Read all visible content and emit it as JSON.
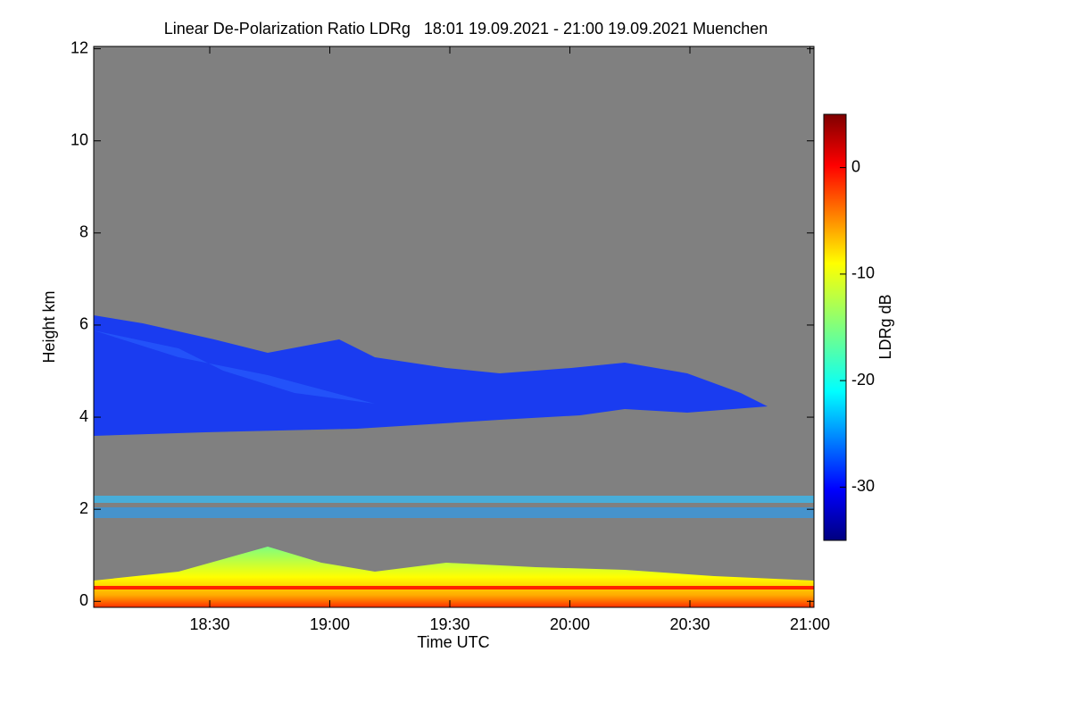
{
  "chart_data": {
    "type": "heatmap",
    "title": "Linear De-Polarization Ratio LDRg   18:01 19.09.2021 - 21:00 19.09.2021 Muenchen",
    "x_label": "Time UTC",
    "y_label": "Height km",
    "xlim": [
      1081,
      1261
    ],
    "xticks": [
      {
        "value": 1110,
        "label": "18:30"
      },
      {
        "value": 1140,
        "label": "19:00"
      },
      {
        "value": 1170,
        "label": "19:30"
      },
      {
        "value": 1200,
        "label": "20:00"
      },
      {
        "value": 1230,
        "label": "20:30"
      },
      {
        "value": 1260,
        "label": "21:00"
      }
    ],
    "ylim": [
      -0.13,
      12.05
    ],
    "yticks": [
      0,
      2,
      4,
      6,
      8,
      10,
      12
    ],
    "colorbar_label": "LDRg dB",
    "clim": [
      -35,
      5
    ],
    "cticks": [
      0,
      -10,
      -20,
      -30
    ]
  }
}
